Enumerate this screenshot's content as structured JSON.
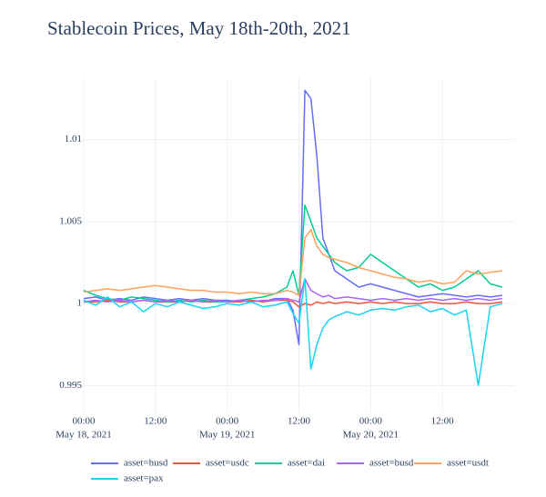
{
  "chart_data": {
    "type": "line",
    "title": "Stablecoin Prices, May 18th-20th, 2021",
    "x": [
      "2021-05-18 00:00",
      "2021-05-18 02:00",
      "2021-05-18 04:00",
      "2021-05-18 06:00",
      "2021-05-18 08:00",
      "2021-05-18 10:00",
      "2021-05-18 12:00",
      "2021-05-18 14:00",
      "2021-05-18 16:00",
      "2021-05-18 18:00",
      "2021-05-18 20:00",
      "2021-05-18 22:00",
      "2021-05-19 00:00",
      "2021-05-19 02:00",
      "2021-05-19 04:00",
      "2021-05-19 06:00",
      "2021-05-19 08:00",
      "2021-05-19 10:00",
      "2021-05-19 11:00",
      "2021-05-19 12:00",
      "2021-05-19 13:00",
      "2021-05-19 14:00",
      "2021-05-19 15:00",
      "2021-05-19 16:00",
      "2021-05-19 17:00",
      "2021-05-19 18:00",
      "2021-05-19 20:00",
      "2021-05-19 22:00",
      "2021-05-20 00:00",
      "2021-05-20 02:00",
      "2021-05-20 04:00",
      "2021-05-20 06:00",
      "2021-05-20 08:00",
      "2021-05-20 10:00",
      "2021-05-20 12:00",
      "2021-05-20 14:00",
      "2021-05-20 16:00",
      "2021-05-20 18:00",
      "2021-05-20 20:00",
      "2021-05-20 22:00"
    ],
    "series": [
      {
        "name": "asset=husd",
        "color": "#636efa",
        "values": [
          1.0003,
          1.0004,
          1.0002,
          1.0003,
          1.0002,
          1.0004,
          1.0003,
          1.0002,
          1.0003,
          1.0002,
          1.0003,
          1.0002,
          1.0002,
          1.0001,
          1.0002,
          1.0001,
          1.0003,
          1.0003,
          0.9996,
          0.9975,
          1.013,
          1.0125,
          1.009,
          1.004,
          1.003,
          1.002,
          1.0015,
          1.001,
          1.0012,
          1.001,
          1.0008,
          1.0006,
          1.0004,
          1.0005,
          1.0006,
          1.0005,
          1.0004,
          1.0005,
          1.0004,
          1.0005
        ]
      },
      {
        "name": "asset=usdc",
        "color": "#EF553B",
        "values": [
          1.0001,
          1.0001,
          1.0002,
          1.0001,
          1.0001,
          1.0002,
          1.0001,
          1.0001,
          1.0001,
          1.0002,
          1.0001,
          1.0001,
          1.0001,
          1.0001,
          1.0002,
          1.0001,
          1.0002,
          1.0002,
          1.0001,
          0.9998,
          1.0,
          0.9999,
          1.0001,
          1.0,
          1.0001,
          1.0,
          1.0001,
          1.0,
          1.0001,
          1.0,
          1.0001,
          1.0,
          1.0,
          1.0001,
          1.0,
          1.0,
          1.0001,
          1.0,
          1.0,
          1.0001
        ]
      },
      {
        "name": "asset=dai",
        "color": "#00cc96",
        "values": [
          1.0008,
          1.0005,
          1.0003,
          1.0002,
          1.0004,
          1.0003,
          1.0002,
          1.0001,
          1.0002,
          1.0001,
          1.0002,
          1.0001,
          1.0001,
          1.0002,
          1.0003,
          1.0004,
          1.0006,
          1.001,
          1.002,
          1.0005,
          1.006,
          1.005,
          1.004,
          1.0035,
          1.003,
          1.0025,
          1.002,
          1.0022,
          1.003,
          1.0025,
          1.002,
          1.0015,
          1.001,
          1.0012,
          1.0008,
          1.001,
          1.0015,
          1.002,
          1.0012,
          1.001
        ]
      },
      {
        "name": "asset=busd",
        "color": "#ab63fa",
        "values": [
          1.0001,
          1.0002,
          1.0001,
          1.0002,
          1.0001,
          1.0002,
          1.0001,
          1.0002,
          1.0001,
          1.0002,
          1.0001,
          1.0002,
          1.0001,
          1.0002,
          1.0001,
          1.0002,
          1.0002,
          1.0003,
          1.0002,
          1.0001,
          1.0015,
          1.0008,
          1.0006,
          1.0004,
          1.0005,
          1.0003,
          1.0004,
          1.0003,
          1.0002,
          1.0003,
          1.0002,
          1.0003,
          1.0002,
          1.0003,
          1.0002,
          1.0003,
          1.0002,
          1.0003,
          1.0002,
          1.0003
        ]
      },
      {
        "name": "asset=usdt",
        "color": "#FFA15A",
        "values": [
          1.0007,
          1.0008,
          1.0009,
          1.0008,
          1.0009,
          1.001,
          1.0011,
          1.001,
          1.0009,
          1.0008,
          1.0008,
          1.0007,
          1.0007,
          1.0006,
          1.0007,
          1.0006,
          1.0006,
          1.0008,
          1.0007,
          1.0005,
          1.004,
          1.0045,
          1.0035,
          1.003,
          1.0028,
          1.0027,
          1.0025,
          1.0022,
          1.002,
          1.0018,
          1.0016,
          1.0015,
          1.0013,
          1.0014,
          1.0012,
          1.0013,
          1.002,
          1.0018,
          1.0019,
          1.002
        ]
      },
      {
        "name": "asset=pax",
        "color": "#19d3f3",
        "values": [
          1.0002,
          0.9999,
          1.0004,
          0.9998,
          1.0001,
          0.9995,
          1.0,
          0.9998,
          1.0001,
          0.9999,
          0.9997,
          0.9998,
          1.0,
          0.9999,
          1.0001,
          0.9998,
          0.9999,
          1.0001,
          0.9994,
          0.9988,
          1.0015,
          0.996,
          0.9975,
          0.9985,
          0.999,
          0.9992,
          0.9995,
          0.9993,
          0.9996,
          0.9997,
          0.9996,
          0.9998,
          0.9999,
          0.9995,
          0.9997,
          0.9993,
          0.9996,
          0.995,
          0.9998,
          1.0
        ]
      }
    ],
    "xlim": [
      "2021-05-18 00:00",
      "2021-05-21 00:00"
    ],
    "xticks": [
      {
        "value": "2021-05-18 00:00",
        "label": [
          "00:00",
          "May 18, 2021"
        ]
      },
      {
        "value": "2021-05-18 12:00",
        "label": [
          "12:00"
        ]
      },
      {
        "value": "2021-05-19 00:00",
        "label": [
          "00:00",
          "May 19, 2021"
        ]
      },
      {
        "value": "2021-05-19 12:00",
        "label": [
          "12:00"
        ]
      },
      {
        "value": "2021-05-20 00:00",
        "label": [
          "00:00",
          "May 20, 2021"
        ]
      },
      {
        "value": "2021-05-20 12:00",
        "label": [
          "12:00"
        ]
      }
    ],
    "ylim": [
      0.9933,
      1.0138
    ],
    "yticks": [
      0.995,
      1,
      1.005,
      1.01
    ],
    "grid": true,
    "legend": "bottom"
  }
}
